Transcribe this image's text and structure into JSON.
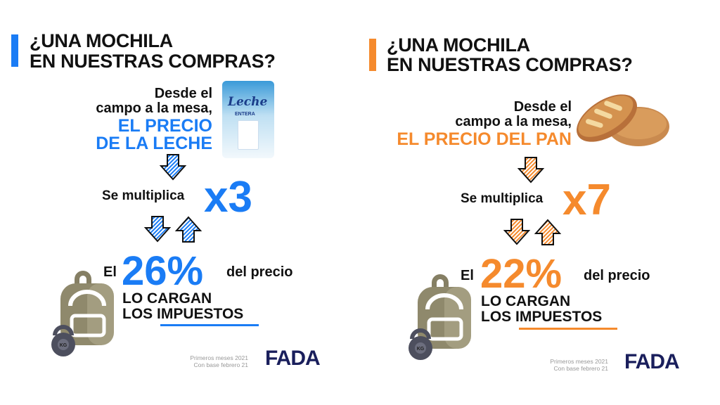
{
  "colors": {
    "blue": "#1a7cf5",
    "orange": "#f58a2d",
    "dark": "#111111",
    "navy": "#1a1f5c"
  },
  "panels": [
    {
      "title_line1": "¿UNA MOCHILA",
      "title_line2": "EN NUESTRAS COMPRAS?",
      "sub_line1": "Desde el",
      "sub_line2": "campo a la mesa,",
      "highlight_line1": "EL PRECIO",
      "highlight_line2": "DE LA LECHE",
      "product_label": "Leche",
      "product_sublabel": "ENTERA",
      "multiply_label": "Se multiplica",
      "multiplier": "x3",
      "el_label": "El",
      "percent": "26%",
      "del_precio": "del precio",
      "carga_line1": "LO CARGAN",
      "carga_line2": "LOS IMPUESTOS",
      "kettlebell_label": "KG",
      "footnote_line1": "Primeros meses 2021",
      "footnote_line2": "Con base febrero 21",
      "logo": "FADA"
    },
    {
      "title_line1": "¿UNA MOCHILA",
      "title_line2": "EN NUESTRAS COMPRAS?",
      "sub_line1": "Desde el",
      "sub_line2": "campo a la mesa,",
      "highlight_line1": "EL PRECIO DEL PAN",
      "multiply_label": "Se multiplica",
      "multiplier": "x7",
      "el_label": "El",
      "percent": "22%",
      "del_precio": "del precio",
      "carga_line1": "LO CARGAN",
      "carga_line2": "LOS IMPUESTOS",
      "kettlebell_label": "KG",
      "footnote_line1": "Primeros meses 2021",
      "footnote_line2": "Con base febrero 21",
      "logo": "FADA"
    }
  ]
}
